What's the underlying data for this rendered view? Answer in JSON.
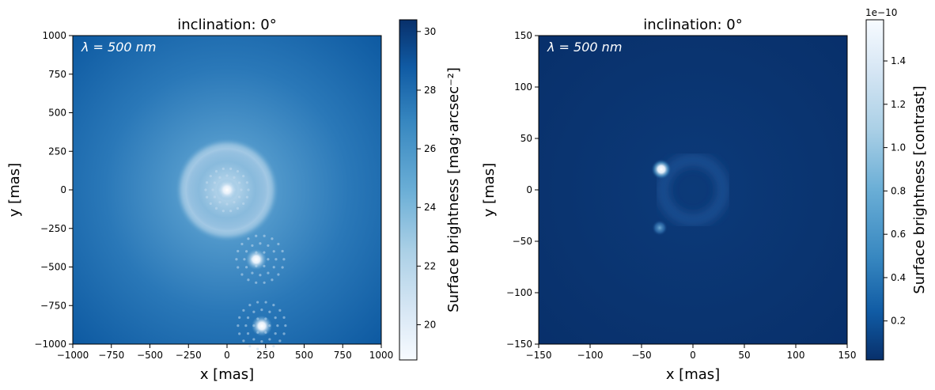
{
  "chart_data": [
    {
      "type": "heatmap",
      "title": "inclination: 0°",
      "annotation": "λ = 500 nm",
      "xlabel": "x [mas]",
      "ylabel": "y [mas]",
      "xlim": [
        -1000,
        1000
      ],
      "ylim": [
        -1000,
        1000
      ],
      "xticks": [
        -1000,
        -750,
        -500,
        -250,
        0,
        250,
        500,
        750,
        1000
      ],
      "yticks": [
        -1000,
        -750,
        -500,
        -250,
        0,
        250,
        500,
        750,
        1000
      ],
      "xtick_labels": [
        "−1000",
        "−750",
        "−500",
        "−250",
        "0",
        "250",
        "500",
        "750",
        "1000"
      ],
      "ytick_labels": [
        "−1000",
        "−750",
        "−500",
        "−250",
        "0",
        "250",
        "500",
        "750",
        "1000"
      ],
      "colormap": "Blues (reversed)",
      "colorbar": {
        "label": "Surface brightness [mag·arcsec⁻²]",
        "range": [
          18.8,
          30.4
        ],
        "ticks": [
          20,
          22,
          24,
          26,
          28,
          30
        ],
        "tick_labels": [
          "20",
          "22",
          "24",
          "26",
          "28",
          "30"
        ],
        "reversed": true
      },
      "features": [
        {
          "x": 0,
          "y": 0,
          "kind": "central star with halo ring"
        },
        {
          "x": 215,
          "y": -450,
          "kind": "point source"
        },
        {
          "x": 225,
          "y": -880,
          "kind": "point source"
        }
      ]
    },
    {
      "type": "heatmap",
      "title": "inclination: 0°",
      "annotation": "λ = 500 nm",
      "xlabel": "x [mas]",
      "ylabel": "y [mas]",
      "xlim": [
        -150,
        150
      ],
      "ylim": [
        -150,
        150
      ],
      "xticks": [
        -150,
        -100,
        -50,
        0,
        50,
        100,
        150
      ],
      "yticks": [
        -150,
        -100,
        -50,
        0,
        50,
        100,
        150
      ],
      "xtick_labels": [
        "−150",
        "−100",
        "−50",
        "0",
        "50",
        "100",
        "150"
      ],
      "ytick_labels": [
        "−150",
        "−100",
        "−50",
        "0",
        "50",
        "100",
        "150"
      ],
      "colormap": "Blues",
      "colorbar": {
        "label": "Surface brightness [contrast]",
        "offset_text": "1e−10",
        "range": [
          0.02,
          1.59
        ],
        "ticks": [
          0.2,
          0.4,
          0.6,
          0.8,
          1.0,
          1.2,
          1.4
        ],
        "tick_labels": [
          "0.2",
          "0.4",
          "0.6",
          "0.8",
          "1.0",
          "1.2",
          "1.4"
        ],
        "reversed": false
      },
      "features": [
        {
          "x": -31,
          "y": 20,
          "kind": "bright point source"
        },
        {
          "x": -32,
          "y": -37,
          "kind": "faint point source"
        },
        {
          "x": 0,
          "y": 0,
          "kind": "ring"
        }
      ]
    }
  ]
}
